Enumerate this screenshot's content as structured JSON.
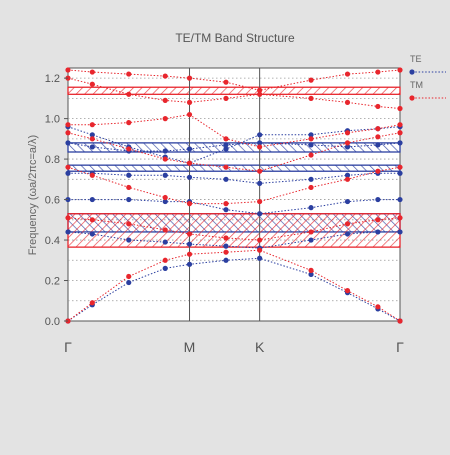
{
  "chart_data": {
    "type": "scatter",
    "title": "TE/TM Band Structure",
    "xlabel": "",
    "ylabel": "Frequency (ωa/2πc=a/λ)",
    "ylim": [
      0,
      1.25
    ],
    "yticks": [
      "0.0",
      "0.2",
      "0.4",
      "0.6",
      "0.8",
      "1.0",
      "1.2"
    ],
    "k_points": [
      {
        "label": "Γ",
        "k": 0
      },
      {
        "label": "M",
        "k": 1
      },
      {
        "label": "K",
        "k": 1.577
      },
      {
        "label": "Γ",
        "k": 2.732
      }
    ],
    "grid": "horizontal dotted",
    "legend_position": "right",
    "series": [
      {
        "name": "TE",
        "color": "#2b3fa0",
        "bands": [
          {
            "k": [
              0,
              0.2,
              0.5,
              0.8,
              1.0,
              1.3,
              1.577,
              2.0,
              2.3,
              2.55,
              2.732
            ],
            "f": [
              0.0,
              0.08,
              0.19,
              0.26,
              0.28,
              0.3,
              0.31,
              0.23,
              0.14,
              0.06,
              0.0
            ]
          },
          {
            "k": [
              0,
              0.2,
              0.5,
              0.8,
              1.0,
              1.3,
              1.577,
              2.0,
              2.3,
              2.55,
              2.732
            ],
            "f": [
              0.44,
              0.43,
              0.4,
              0.39,
              0.38,
              0.37,
              0.36,
              0.4,
              0.43,
              0.44,
              0.44
            ]
          },
          {
            "k": [
              0,
              0.2,
              0.5,
              0.8,
              1.0,
              1.3,
              1.577,
              2.0,
              2.3,
              2.55,
              2.732
            ],
            "f": [
              0.6,
              0.6,
              0.6,
              0.59,
              0.59,
              0.55,
              0.53,
              0.56,
              0.59,
              0.6,
              0.6
            ]
          },
          {
            "k": [
              0,
              0.2,
              0.5,
              0.8,
              1.0,
              1.3,
              1.577,
              2.0,
              2.3,
              2.55,
              2.732
            ],
            "f": [
              0.73,
              0.73,
              0.72,
              0.72,
              0.71,
              0.7,
              0.68,
              0.7,
              0.72,
              0.73,
              0.73
            ]
          },
          {
            "k": [
              0,
              0.2,
              0.5,
              0.8,
              1.0,
              1.3,
              1.577,
              2.0,
              2.3,
              2.55,
              2.732
            ],
            "f": [
              0.96,
              0.92,
              0.86,
              0.81,
              0.78,
              0.85,
              0.92,
              0.92,
              0.94,
              0.95,
              0.96
            ]
          },
          {
            "k": [
              0,
              0.2,
              0.5,
              0.8,
              1.0,
              1.3,
              1.577,
              2.0,
              2.3,
              2.55,
              2.732
            ],
            "f": [
              0.88,
              0.86,
              0.84,
              0.84,
              0.85,
              0.87,
              0.88,
              0.87,
              0.86,
              0.87,
              0.88
            ]
          }
        ]
      },
      {
        "name": "TM",
        "color": "#e8262d",
        "bands": [
          {
            "k": [
              0,
              0.2,
              0.5,
              0.8,
              1.0,
              1.3,
              1.577,
              2.0,
              2.3,
              2.55,
              2.732
            ],
            "f": [
              0.0,
              0.09,
              0.22,
              0.3,
              0.33,
              0.34,
              0.35,
              0.25,
              0.15,
              0.07,
              0.0
            ]
          },
          {
            "k": [
              0,
              0.2,
              0.5,
              0.8,
              1.0,
              1.3,
              1.577,
              2.0,
              2.3,
              2.55,
              2.732
            ],
            "f": [
              0.51,
              0.5,
              0.48,
              0.45,
              0.43,
              0.41,
              0.4,
              0.44,
              0.48,
              0.5,
              0.51
            ]
          },
          {
            "k": [
              0,
              0.2,
              0.5,
              0.8,
              1.0,
              1.3,
              1.577,
              2.0,
              2.3,
              2.55,
              2.732
            ],
            "f": [
              0.76,
              0.72,
              0.66,
              0.61,
              0.58,
              0.58,
              0.59,
              0.66,
              0.7,
              0.74,
              0.76
            ]
          },
          {
            "k": [
              0,
              0.2,
              0.5,
              0.8,
              1.0,
              1.3,
              1.577,
              2.0,
              2.3,
              2.55,
              2.732
            ],
            "f": [
              0.93,
              0.9,
              0.85,
              0.8,
              0.78,
              0.76,
              0.74,
              0.82,
              0.88,
              0.91,
              0.93
            ]
          },
          {
            "k": [
              0,
              0.2,
              0.5,
              0.8,
              1.0,
              1.3,
              1.577,
              2.0,
              2.3,
              2.55,
              2.732
            ],
            "f": [
              1.2,
              1.17,
              1.12,
              1.09,
              1.08,
              1.1,
              1.12,
              1.1,
              1.08,
              1.06,
              1.05
            ]
          },
          {
            "k": [
              0,
              0.2,
              0.5,
              0.8,
              1.0,
              1.3,
              1.577,
              2.0,
              2.3,
              2.55,
              2.732
            ],
            "f": [
              1.24,
              1.23,
              1.22,
              1.21,
              1.2,
              1.18,
              1.14,
              1.19,
              1.22,
              1.23,
              1.24
            ]
          },
          {
            "k": [
              0,
              0.2,
              0.5,
              0.8,
              1.0,
              1.3,
              1.577,
              2.0,
              2.3,
              2.55,
              2.732
            ],
            "f": [
              0.97,
              0.97,
              0.98,
              1.0,
              1.02,
              0.9,
              0.86,
              0.9,
              0.93,
              0.95,
              0.97
            ]
          }
        ]
      }
    ],
    "band_gaps": [
      {
        "polarization": "TM",
        "range": [
          1.12,
          1.155
        ]
      },
      {
        "polarization": "TE",
        "range": [
          0.835,
          0.88
        ]
      },
      {
        "polarization": "TE",
        "range": [
          0.74,
          0.77
        ]
      },
      {
        "polarization": "TE",
        "range": [
          0.44,
          0.53
        ]
      },
      {
        "polarization": "TM",
        "range": [
          0.365,
          0.53
        ]
      }
    ]
  }
}
